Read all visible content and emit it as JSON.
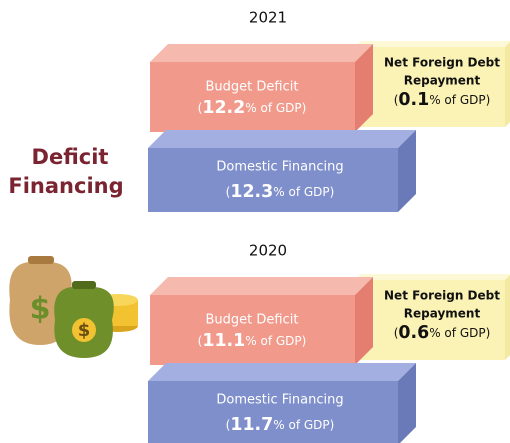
{
  "title": [
    "Deficit",
    "Financing"
  ],
  "panels": [
    {
      "year": "2021",
      "budget_deficit": {
        "label": "Budget Deficit",
        "prefix": "(",
        "value": 12.2,
        "suffix": "% of GDP)"
      },
      "net_foreign": {
        "label": [
          "Net Foreign Debt",
          "Repayment"
        ],
        "prefix": "(",
        "value": 0.1,
        "suffix": "% of GDP)"
      },
      "domestic": {
        "label": "Domestic Financing",
        "prefix": "(",
        "value": 12.3,
        "suffix": "% of GDP)"
      }
    },
    {
      "year": "2020",
      "budget_deficit": {
        "label": "Budget Deficit",
        "prefix": "(",
        "value": 11.1,
        "suffix": "% of GDP)"
      },
      "net_foreign": {
        "label": [
          "Net Foreign Debt",
          "Repayment"
        ],
        "prefix": "(",
        "value": 0.6,
        "suffix": "% of GDP)"
      },
      "domestic": {
        "label": "Domestic Financing",
        "prefix": "(",
        "value": 11.7,
        "suffix": "% of GDP)"
      }
    }
  ]
}
